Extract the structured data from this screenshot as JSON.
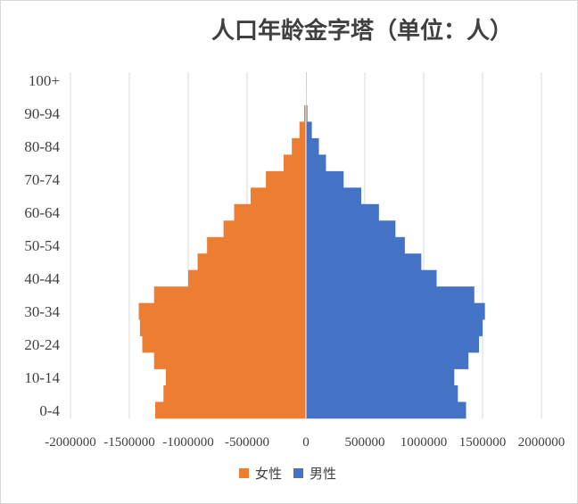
{
  "chart_data": {
    "type": "bar",
    "orientation": "horizontal",
    "title": "人口年龄金字塔（单位：人）",
    "categories": [
      "0-4",
      "5-9",
      "10-14",
      "15-19",
      "20-24",
      "25-29",
      "30-34",
      "35-39",
      "40-44",
      "45-49",
      "50-54",
      "55-59",
      "60-64",
      "65-69",
      "70-74",
      "75-79",
      "80-84",
      "85-89",
      "90-94",
      "95-99",
      "100+"
    ],
    "ytick_labels": [
      "0-4",
      "",
      "10-14",
      "",
      "20-24",
      "",
      "30-34",
      "",
      "40-44",
      "",
      "50-54",
      "",
      "60-64",
      "",
      "70-74",
      "",
      "80-84",
      "",
      "90-94",
      "",
      "100+"
    ],
    "series": [
      {
        "name": "女性",
        "color": "#ED7D31",
        "values": [
          -1280000,
          -1210000,
          -1190000,
          -1290000,
          -1390000,
          -1410000,
          -1420000,
          -1290000,
          -1000000,
          -920000,
          -840000,
          -700000,
          -610000,
          -470000,
          -340000,
          -190000,
          -120000,
          -55000,
          -15000,
          -4000,
          -1500
        ]
      },
      {
        "name": "男性",
        "color": "#4472C4",
        "values": [
          1360000,
          1290000,
          1260000,
          1380000,
          1470000,
          1500000,
          1520000,
          1430000,
          1110000,
          980000,
          840000,
          760000,
          620000,
          470000,
          320000,
          170000,
          110000,
          50000,
          12000,
          4000,
          1000
        ]
      }
    ],
    "xticks": [
      -2000000,
      -1500000,
      -1000000,
      -500000,
      0,
      500000,
      1000000,
      1500000,
      2000000
    ],
    "xtick_labels": [
      "-2000000",
      "-1500000",
      "-1000000",
      "-500000",
      "0",
      "500000",
      "1000000",
      "1500000",
      "2000000"
    ],
    "xlim": [
      -2000000,
      2000000
    ],
    "grid": true,
    "legend_position": "bottom"
  }
}
